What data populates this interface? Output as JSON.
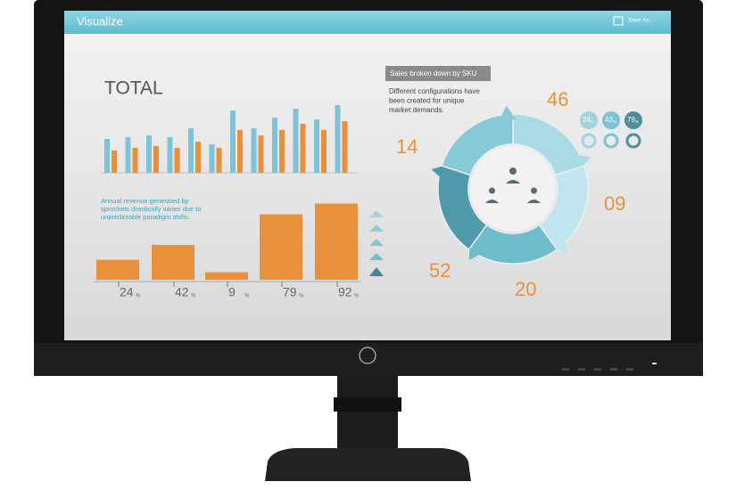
{
  "header": {
    "title": "Visualize",
    "save_button": "Save As..."
  },
  "total_panel": {
    "title": "TOTAL",
    "sku_bars": {
      "type": "bar",
      "series": [
        {
          "color": "#7fc4d6",
          "values": [
            38,
            40,
            42,
            40,
            50,
            32,
            70,
            50,
            62,
            72,
            60,
            76
          ]
        },
        {
          "color": "#e8913a",
          "values": [
            25,
            28,
            30,
            28,
            35,
            28,
            48,
            42,
            48,
            55,
            48,
            58
          ]
        }
      ]
    }
  },
  "revenue_panel": {
    "description": [
      "Annual revenue generated by",
      "sprockets drastically varies due to",
      "unpredictable paradigm shifts."
    ],
    "chart": {
      "type": "bar",
      "color": "#e8913a",
      "values": [
        24,
        42,
        9,
        79,
        92
      ],
      "unit": "%"
    }
  },
  "sku_panel": {
    "label": "Sales broken down by SKU",
    "description": [
      "Different configurations have",
      "been created for unique",
      "market demands."
    ],
    "donut_labels": [
      "46",
      "09",
      "20",
      "52",
      "14"
    ],
    "badges": [
      "24",
      "42",
      "79"
    ],
    "badge_unit": "%"
  }
}
